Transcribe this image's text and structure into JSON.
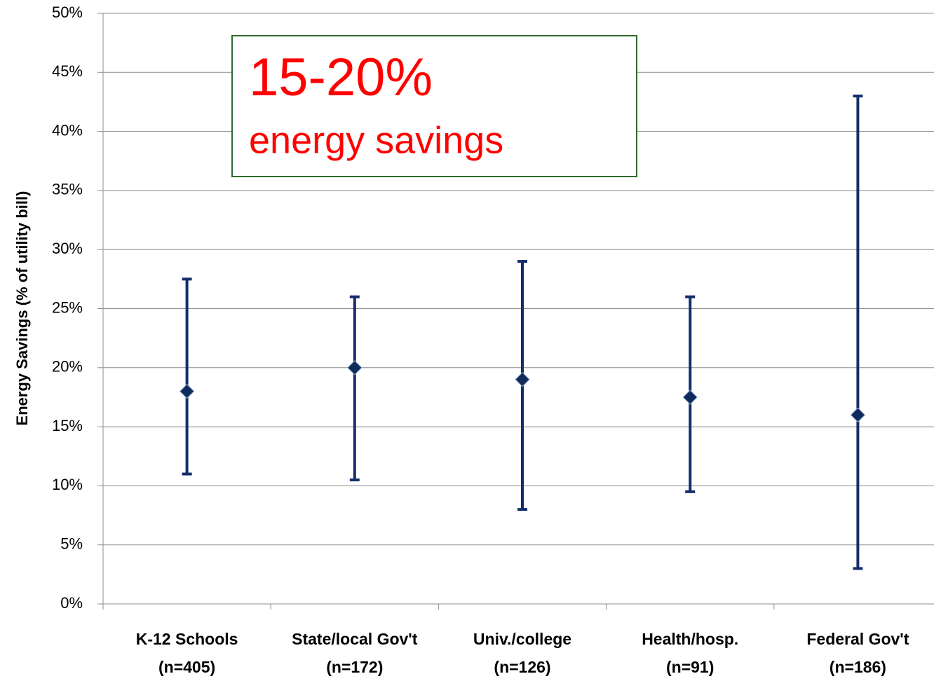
{
  "chart_data": {
    "type": "errorbar",
    "y_label": "Energy Savings (% of utility bill)",
    "annotation": [
      "15-20%",
      "energy savings"
    ],
    "categories": [
      [
        "K-12 Schools",
        "(n=405)"
      ],
      [
        "State/local Gov't",
        "(n=172)"
      ],
      [
        "Univ./college",
        "(n=126)"
      ],
      [
        "Health/hosp.",
        "(n=91)"
      ],
      [
        "Federal Gov't",
        "(n=186)"
      ]
    ],
    "series": [
      {
        "color": "#142d6b",
        "values": [
          18,
          20,
          19,
          17.5,
          16
        ],
        "low": [
          11,
          10.5,
          8,
          9.5,
          3
        ],
        "high": [
          27.5,
          26,
          29,
          26,
          43
        ]
      }
    ],
    "ylim": [
      0,
      50
    ],
    "yticks": [
      {
        "value": 0,
        "label": "0%"
      },
      {
        "value": 5,
        "label": "5%"
      },
      {
        "value": 10,
        "label": "10%"
      },
      {
        "value": 15,
        "label": "15%"
      },
      {
        "value": 20,
        "label": "20%"
      },
      {
        "value": 25,
        "label": "25%"
      },
      {
        "value": 30,
        "label": "30%"
      },
      {
        "value": 35,
        "label": "35%"
      },
      {
        "value": 40,
        "label": "40%"
      },
      {
        "value": 45,
        "label": "45%"
      },
      {
        "value": 50,
        "label": "50%"
      }
    ],
    "grid": true
  }
}
